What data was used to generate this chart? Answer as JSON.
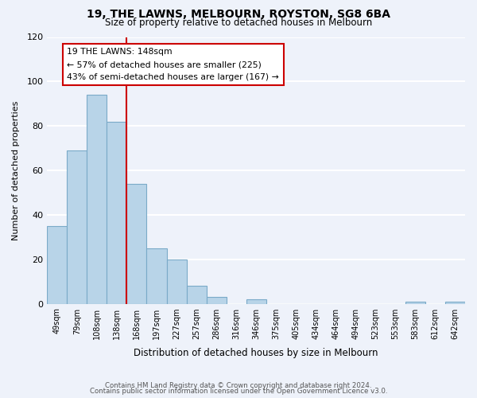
{
  "title": "19, THE LAWNS, MELBOURN, ROYSTON, SG8 6BA",
  "subtitle": "Size of property relative to detached houses in Melbourn",
  "xlabel": "Distribution of detached houses by size in Melbourn",
  "ylabel": "Number of detached properties",
  "bar_color": "#b8d4e8",
  "bar_edge_color": "#7aaac8",
  "background_color": "#eef2fa",
  "grid_color": "#ffffff",
  "bins": [
    "49sqm",
    "79sqm",
    "108sqm",
    "138sqm",
    "168sqm",
    "197sqm",
    "227sqm",
    "257sqm",
    "286sqm",
    "316sqm",
    "346sqm",
    "375sqm",
    "405sqm",
    "434sqm",
    "464sqm",
    "494sqm",
    "523sqm",
    "553sqm",
    "583sqm",
    "612sqm",
    "642sqm"
  ],
  "values": [
    35,
    69,
    94,
    82,
    54,
    25,
    20,
    8,
    3,
    0,
    2,
    0,
    0,
    0,
    0,
    0,
    0,
    0,
    1,
    0,
    1
  ],
  "property_line_color": "#cc0000",
  "annotation_text": "19 THE LAWNS: 148sqm\n← 57% of detached houses are smaller (225)\n43% of semi-detached houses are larger (167) →",
  "annotation_box_color": "#ffffff",
  "annotation_box_edge": "#cc0000",
  "ylim": [
    0,
    120
  ],
  "yticks": [
    0,
    20,
    40,
    60,
    80,
    100,
    120
  ],
  "footnote1": "Contains HM Land Registry data © Crown copyright and database right 2024.",
  "footnote2": "Contains public sector information licensed under the Open Government Licence v3.0."
}
